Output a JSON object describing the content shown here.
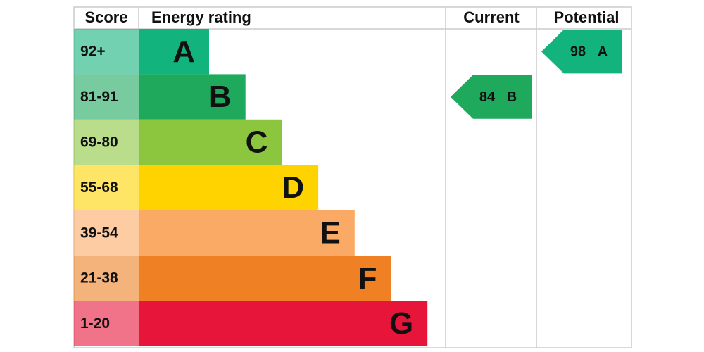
{
  "header": {
    "score": "Score",
    "energy_rating": "Energy rating",
    "current": "Current",
    "potential": "Potential"
  },
  "bands": [
    {
      "score": "92+",
      "letter": "A",
      "color": "#12b37c"
    },
    {
      "score": "81-91",
      "letter": "B",
      "color": "#1ea95d"
    },
    {
      "score": "69-80",
      "letter": "C",
      "color": "#8cc63f"
    },
    {
      "score": "55-68",
      "letter": "D",
      "color": "#ffd300"
    },
    {
      "score": "39-54",
      "letter": "E",
      "color": "#fbaa66"
    },
    {
      "score": "21-38",
      "letter": "F",
      "color": "#ef8024"
    },
    {
      "score": "1-20",
      "letter": "G",
      "color": "#e8153b"
    }
  ],
  "current": {
    "value": 84,
    "rating": "B"
  },
  "potential": {
    "value": 98,
    "rating": "A"
  }
}
